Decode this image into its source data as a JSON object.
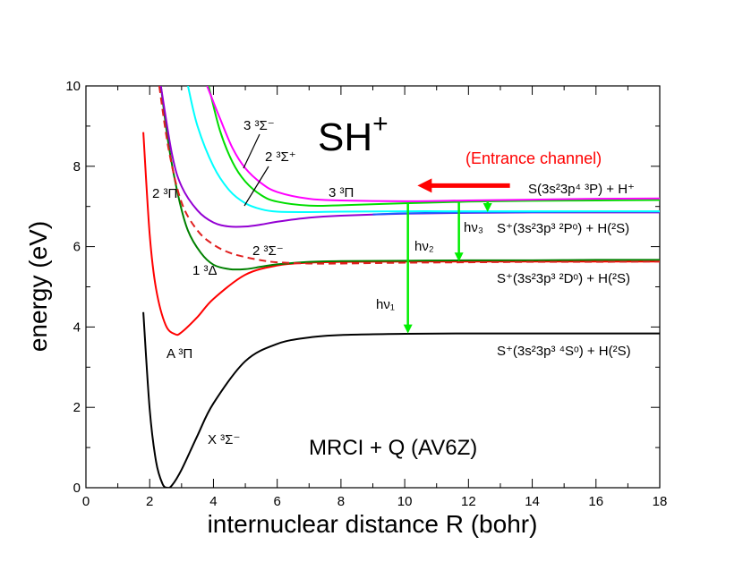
{
  "chart_data": {
    "type": "line",
    "title": "SH⁺",
    "title_parts": {
      "base": "SH",
      "sup": "+"
    },
    "xlabel": "internuclear distance R (bohr)",
    "ylabel": "energy (eV)",
    "xlim": [
      0,
      18
    ],
    "ylim": [
      0,
      10
    ],
    "x_ticks": [
      "0",
      "2",
      "4",
      "6",
      "8",
      "10",
      "12",
      "14",
      "16",
      "18"
    ],
    "y_ticks": [
      "0",
      "2",
      "4",
      "6",
      "8",
      "10"
    ],
    "x_tick_values": [
      0,
      2,
      4,
      6,
      8,
      10,
      12,
      14,
      16,
      18
    ],
    "y_tick_values": [
      0,
      2,
      4,
      6,
      8,
      10
    ],
    "method_label": "MRCI + Q (AV6Z)",
    "entrance_label": "(Entrance channel)",
    "entrance_arrow": {
      "from": [
        13.3,
        7.52
      ],
      "to": [
        10.4,
        7.52
      ],
      "color": "#ff0000"
    },
    "colors": {
      "x3sigma": "#000000",
      "a3pi": "#ff0000",
      "13delta": "#008000",
      "23sigma": "#e02020",
      "23pi": "#9400d3",
      "33sigma": "#00ffff",
      "23sigmaplus": "#00dd00",
      "33pi": "#ff00ff",
      "blue": "#1e5bff",
      "arrows": "#00ee00"
    },
    "series": [
      {
        "key": "x3sigma",
        "name": "X ³Σ⁻",
        "dashed": false,
        "x": [
          1.8,
          2.0,
          2.2,
          2.4,
          2.55,
          2.7,
          3.0,
          3.5,
          4.0,
          5.0,
          6.0,
          7.0,
          8.0,
          10.0,
          12.0,
          14.0,
          16.0,
          18.0
        ],
        "y": [
          4.37,
          1.95,
          0.65,
          0.1,
          0.0,
          0.06,
          0.45,
          1.3,
          2.1,
          3.15,
          3.58,
          3.74,
          3.8,
          3.83,
          3.84,
          3.84,
          3.84,
          3.84
        ]
      },
      {
        "key": "a3pi",
        "name": "A ³Π",
        "dashed": false,
        "x": [
          1.8,
          2.0,
          2.2,
          2.5,
          2.8,
          3.0,
          3.5,
          4.0,
          5.0,
          6.0,
          7.0,
          8.0,
          10.0,
          12.0,
          14.0,
          16.0,
          18.0
        ],
        "y": [
          8.85,
          6.3,
          4.95,
          4.05,
          3.82,
          3.87,
          4.25,
          4.7,
          5.3,
          5.53,
          5.6,
          5.62,
          5.63,
          5.63,
          5.63,
          5.63,
          5.63
        ]
      },
      {
        "key": "13delta",
        "name": "1 ³Δ",
        "dashed": false,
        "x": [
          2.35,
          2.6,
          2.9,
          3.2,
          3.6,
          4.0,
          4.5,
          5.0,
          5.5,
          6.0,
          7.0,
          8.0,
          10.0,
          12.0,
          14.0,
          16.0,
          18.0
        ],
        "y": [
          10.0,
          8.5,
          7.25,
          6.4,
          5.85,
          5.55,
          5.44,
          5.44,
          5.5,
          5.56,
          5.62,
          5.64,
          5.65,
          5.66,
          5.66,
          5.67,
          5.67
        ]
      },
      {
        "key": "23sigma",
        "name": "2 ³Σ⁻",
        "dashed": true,
        "x": [
          2.3,
          2.6,
          3.0,
          3.5,
          4.0,
          4.5,
          5.0,
          5.5,
          6.0,
          7.0,
          8.0,
          10.0,
          12.0,
          14.0,
          16.0,
          18.0
        ],
        "y": [
          10.0,
          8.4,
          7.1,
          6.4,
          6.05,
          5.85,
          5.74,
          5.66,
          5.61,
          5.58,
          5.58,
          5.6,
          5.61,
          5.62,
          5.62,
          5.63
        ]
      },
      {
        "key": "23pi",
        "name": "2 ³Π",
        "dashed": false,
        "x": [
          2.35,
          2.7,
          3.0,
          3.5,
          4.0,
          4.5,
          5.0,
          5.5,
          6.0,
          7.0,
          8.0,
          10.0,
          12.0,
          14.0,
          16.0,
          18.0
        ],
        "y": [
          10.0,
          8.3,
          7.5,
          6.9,
          6.6,
          6.5,
          6.5,
          6.55,
          6.62,
          6.72,
          6.77,
          6.82,
          6.84,
          6.85,
          6.85,
          6.85
        ]
      },
      {
        "key": "blue",
        "name": "",
        "dashed": false,
        "x": [
          9.0,
          10.0,
          12.0,
          14.0,
          16.0,
          18.0
        ],
        "y": [
          6.8,
          6.83,
          6.85,
          6.86,
          6.87,
          6.87
        ]
      },
      {
        "key": "33sigma",
        "name": "3 ³Σ⁻",
        "dashed": false,
        "x": [
          3.2,
          3.5,
          4.0,
          4.5,
          5.0,
          5.5,
          6.0,
          7.0,
          8.0,
          10.0,
          12.0,
          14.0,
          16.0,
          18.0
        ],
        "y": [
          10.0,
          9.0,
          8.0,
          7.4,
          7.08,
          6.93,
          6.87,
          6.86,
          6.87,
          6.88,
          6.88,
          6.88,
          6.88,
          6.88
        ]
      },
      {
        "key": "23sigmaplus",
        "name": "2 ³Σ⁺",
        "dashed": false,
        "x": [
          3.85,
          4.2,
          4.6,
          5.0,
          5.5,
          6.0,
          7.0,
          8.0,
          10.0,
          12.0,
          14.0,
          16.0,
          18.0
        ],
        "y": [
          10.0,
          8.9,
          8.1,
          7.62,
          7.28,
          7.12,
          7.02,
          7.03,
          7.08,
          7.12,
          7.14,
          7.15,
          7.16
        ]
      },
      {
        "key": "33pi",
        "name": "3 ³Π",
        "dashed": false,
        "x": [
          3.8,
          4.2,
          4.6,
          5.0,
          5.5,
          6.0,
          7.0,
          8.0,
          10.0,
          12.0,
          14.0,
          16.0,
          18.0
        ],
        "y": [
          10.0,
          9.2,
          8.45,
          7.95,
          7.58,
          7.36,
          7.19,
          7.15,
          7.13,
          7.15,
          7.17,
          7.19,
          7.2
        ]
      }
    ],
    "transition_arrows": [
      {
        "name": "hν₁",
        "x": 10.1,
        "y_from": 7.08,
        "y_to": 3.84
      },
      {
        "name": "hν₂",
        "x": 11.7,
        "y_from": 7.12,
        "y_to": 5.63
      },
      {
        "name": "hν₃",
        "x": 12.6,
        "y_from": 7.13,
        "y_to": 6.86
      }
    ],
    "state_labels": {
      "x3sigma": "X ³Σ⁻",
      "a3pi": "A ³Π",
      "13delta": "1 ³Δ",
      "23pi": "2 ³Π",
      "23sigma": "2 ³Σ⁻",
      "33sigma": "3 ³Σ⁻",
      "23sigmaplus": "2 ³Σ⁺",
      "33pi": "3 ³Π"
    },
    "transition_labels": {
      "hv1": "hν₁",
      "hv2": "hν₂",
      "hv3": "hν₃"
    },
    "asymptotes": {
      "s3p_hplus": "S(3s²3p⁴ ³P) + H⁺",
      "splus_2p": "S⁺(3s²3p³ ²Pᵒ) + H(²S)",
      "splus_2d": "S⁺(3s²3p³ ²Dᵒ) + H(²S)",
      "splus_4s": "S⁺(3s²3p³ ⁴Sᵒ) + H(²S)"
    }
  }
}
